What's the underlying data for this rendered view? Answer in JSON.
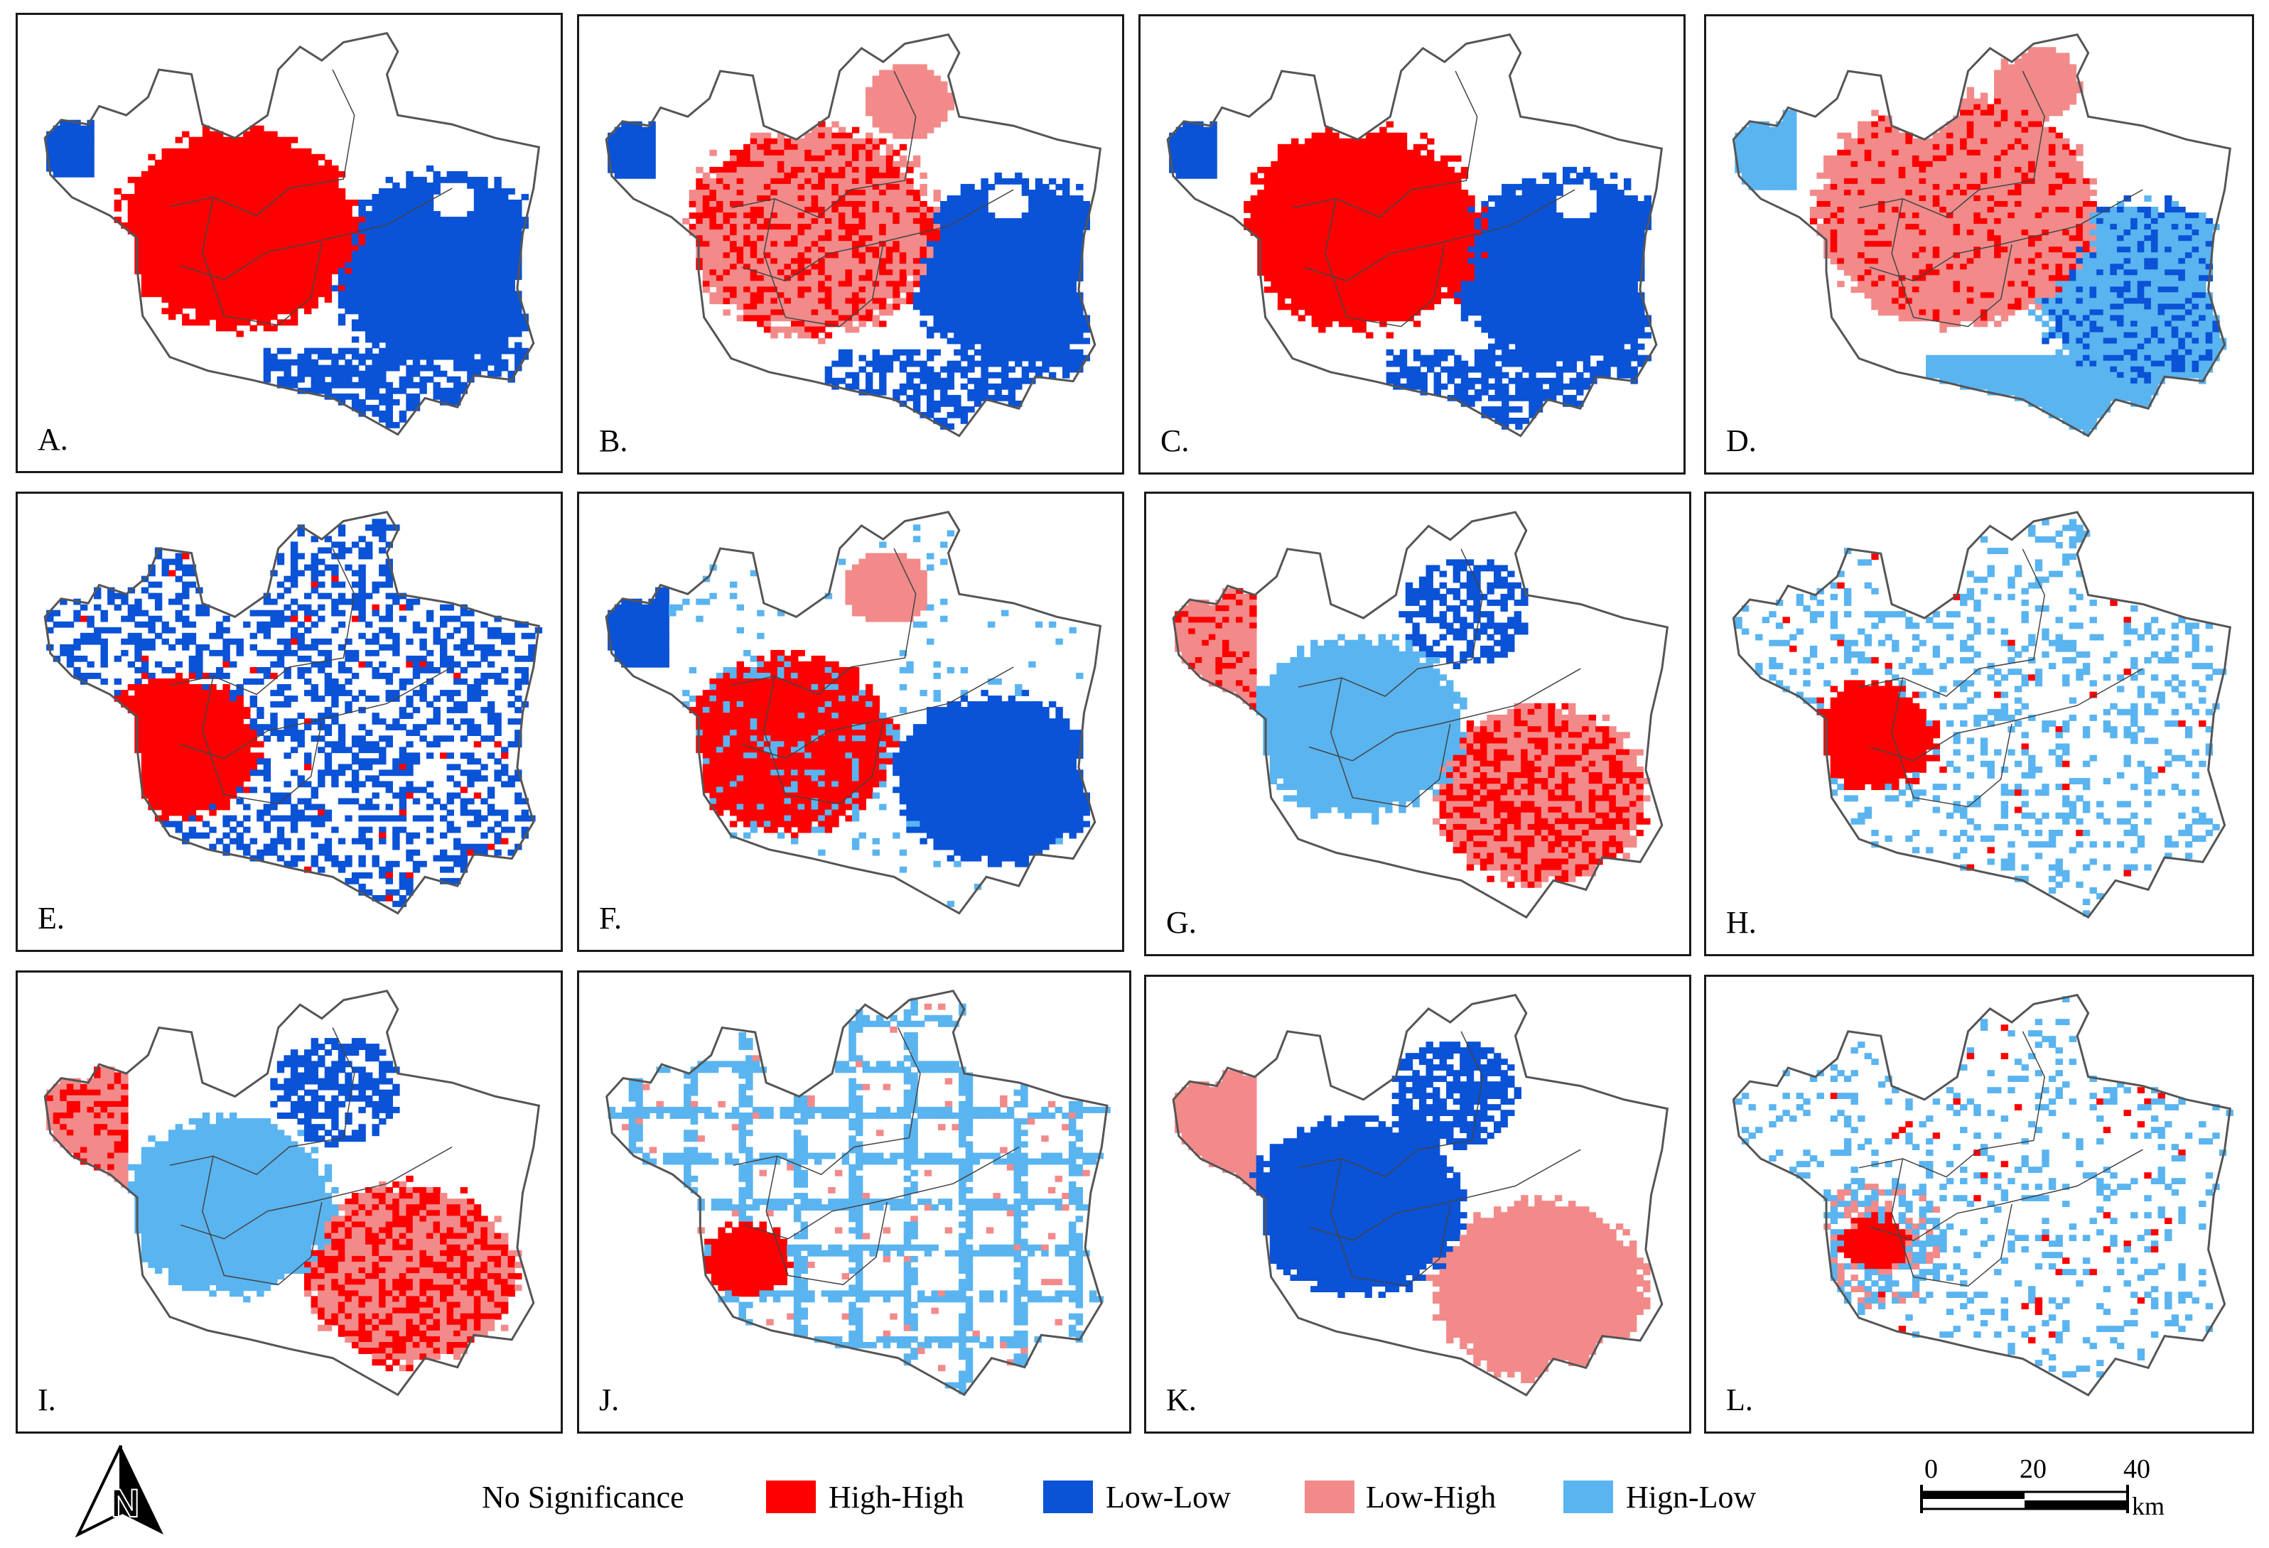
{
  "colors": {
    "high_high": "#ff0000",
    "low_low": "#0a52d6",
    "low_high": "#f28a8a",
    "high_low": "#5ab4f0",
    "boundary": "#555555"
  },
  "panels": [
    {
      "label": "A.",
      "theme": "cluster_east_ll"
    },
    {
      "label": "B.",
      "theme": "cluster_lh"
    },
    {
      "label": "C.",
      "theme": "cluster_east_ll"
    },
    {
      "label": "D.",
      "theme": "cluster_lh_hl"
    },
    {
      "label": "E.",
      "theme": "scatter_ll"
    },
    {
      "label": "F.",
      "theme": "mixed_f"
    },
    {
      "label": "G.",
      "theme": "inverse_hl"
    },
    {
      "label": "H.",
      "theme": "sparse_hl"
    },
    {
      "label": "I.",
      "theme": "inverse_hl"
    },
    {
      "label": "J.",
      "theme": "grid_hl"
    },
    {
      "label": "K.",
      "theme": "inverse_ll"
    },
    {
      "label": "L.",
      "theme": "sparse_mixed"
    }
  ],
  "legend": {
    "items": [
      {
        "label": "No Significance",
        "color_key": "none"
      },
      {
        "label": "High-High",
        "color_key": "high_high"
      },
      {
        "label": "Low-Low",
        "color_key": "low_low"
      },
      {
        "label": "Low-High",
        "color_key": "low_high"
      },
      {
        "label": "Hign-Low",
        "color_key": "high_low"
      }
    ]
  },
  "north_arrow": {
    "letter": "N"
  },
  "scale_bar": {
    "ticks": [
      "0",
      "20",
      "40"
    ],
    "unit": "km"
  }
}
